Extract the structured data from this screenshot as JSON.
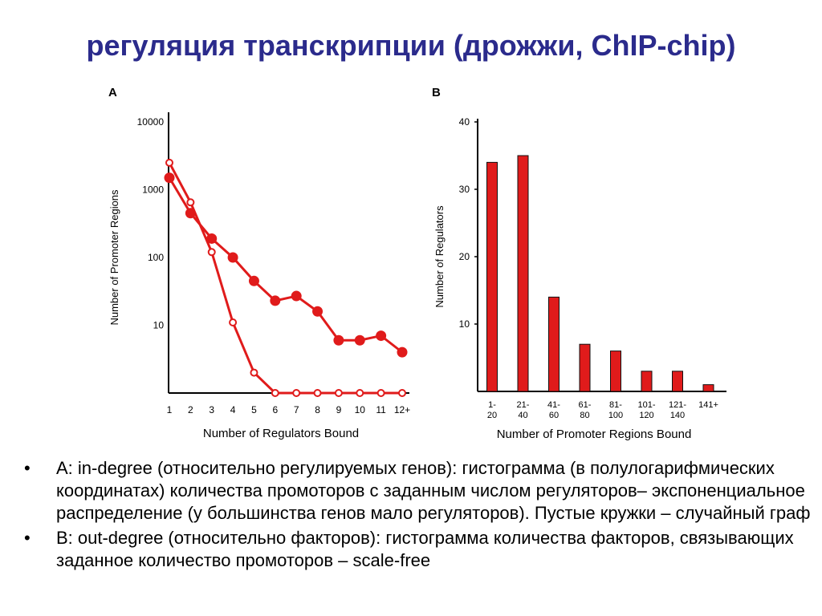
{
  "slide": {
    "title": "регуляция транскрипции (дрожжи, ChIP-chip)"
  },
  "colors": {
    "title": "#2b2b8c",
    "series": "#e01b1b"
  },
  "chart_data": [
    {
      "panel_label": "A",
      "type": "line",
      "yscale": "log",
      "ylim": [
        1,
        10000
      ],
      "ylabel": "Number of Promoter Regions",
      "xlabel": "Number of Regulators Bound",
      "categories": [
        "1",
        "2",
        "3",
        "4",
        "5",
        "6",
        "7",
        "8",
        "9",
        "10",
        "11",
        "12+"
      ],
      "y_ticks": [
        {
          "value": 10000,
          "label": "10000"
        },
        {
          "value": 1000,
          "label": "1000"
        },
        {
          "value": 100,
          "label": "100"
        },
        {
          "value": 10,
          "label": "10"
        }
      ],
      "series": [
        {
          "marker": "filled",
          "values": [
            1500,
            450,
            190,
            100,
            45,
            23,
            27,
            16,
            6,
            6,
            7,
            4
          ]
        },
        {
          "marker": "open",
          "values": [
            2500,
            650,
            120,
            11,
            2,
            1,
            1,
            1,
            1,
            1,
            1,
            1
          ]
        }
      ]
    },
    {
      "panel_label": "B",
      "type": "bar",
      "ylim": [
        0,
        40
      ],
      "ylabel": "Number of Regulators",
      "xlabel": "Number of Promoter Regions Bound",
      "y_ticks": [
        40,
        30,
        20,
        10
      ],
      "categories": [
        [
          "1-",
          "20"
        ],
        [
          "21-",
          "40"
        ],
        [
          "41-",
          "60"
        ],
        [
          "61-",
          "80"
        ],
        [
          "81-",
          "100"
        ],
        [
          "101-",
          "120"
        ],
        [
          "121-",
          "140"
        ],
        [
          "141+"
        ]
      ],
      "values": [
        34,
        35,
        14,
        7,
        6,
        3,
        3,
        1
      ]
    }
  ],
  "bullets": [
    "A: in-degree (относительно регулируемых генов): гистограмма (в полулогарифмических координатах) количества промоторов с заданным числом регуляторов– экспоненциальное распределение (у большинства генов мало регуляторов). Пустые кружки – случайный граф",
    "B: out-degree (относительно факторов): гистограмма количества факторов, связывающих заданное количество промоторов – scale-free"
  ],
  "bullet_glyph": "•"
}
